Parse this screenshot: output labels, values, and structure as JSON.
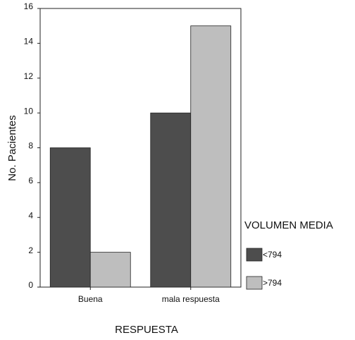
{
  "chart_data": {
    "type": "bar",
    "x_label": "RESPUESTA",
    "y_label": "No. Pacientes",
    "legend_title": "VOLUMEN MEDIA",
    "categories": [
      "Buena",
      "mala respuesta"
    ],
    "series": [
      {
        "name": "<794",
        "color": "#4d4d4d",
        "values": [
          8,
          10
        ]
      },
      {
        "name": ">794",
        "color": "#bebebe",
        "values": [
          2,
          15
        ]
      }
    ],
    "ylim": [
      0,
      16
    ],
    "yticks": [
      0,
      2,
      4,
      6,
      8,
      10,
      12,
      14,
      16
    ]
  }
}
